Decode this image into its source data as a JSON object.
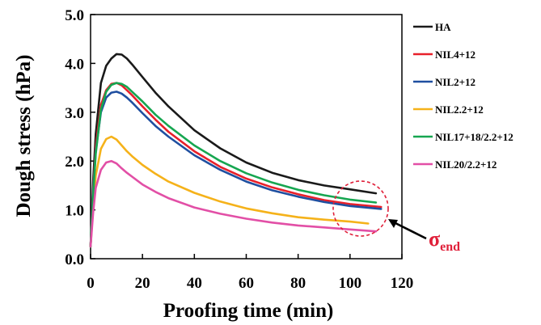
{
  "chart_data": {
    "type": "line",
    "title": "",
    "xlabel": "Proofing time (min)",
    "ylabel": "Dough stress (hPa)",
    "xlim": [
      0,
      120
    ],
    "ylim": [
      0,
      5
    ],
    "xticks": [
      "0",
      "20",
      "40",
      "60",
      "80",
      "100",
      "120"
    ],
    "yticks": [
      "0.0",
      "1.0",
      "2.0",
      "3.0",
      "4.0",
      "5.0"
    ],
    "grid": false,
    "legend_position": "right",
    "series": [
      {
        "name": "HA",
        "color": "#1a1a1a",
        "x": [
          0,
          1,
          2,
          4,
          6,
          8,
          10,
          12,
          14,
          16,
          20,
          25,
          30,
          40,
          50,
          60,
          70,
          80,
          90,
          100,
          110
        ],
        "y": [
          0.25,
          1.6,
          2.55,
          3.6,
          3.95,
          4.1,
          4.19,
          4.18,
          4.1,
          3.98,
          3.72,
          3.4,
          3.12,
          2.63,
          2.26,
          1.97,
          1.76,
          1.61,
          1.5,
          1.42,
          1.34
        ]
      },
      {
        "name": "NIL4+12",
        "color": "#e8202a",
        "x": [
          0,
          1,
          2,
          4,
          6,
          8,
          10,
          12,
          14,
          16,
          20,
          25,
          30,
          40,
          50,
          60,
          70,
          80,
          90,
          100,
          112
        ],
        "y": [
          0.25,
          1.4,
          2.3,
          3.15,
          3.45,
          3.58,
          3.6,
          3.55,
          3.45,
          3.35,
          3.12,
          2.85,
          2.6,
          2.2,
          1.88,
          1.64,
          1.46,
          1.32,
          1.2,
          1.12,
          1.06
        ]
      },
      {
        "name": "NIL2+12",
        "color": "#1f4fa0",
        "x": [
          0,
          1,
          2,
          4,
          6,
          8,
          10,
          12,
          14,
          16,
          20,
          25,
          30,
          40,
          50,
          60,
          70,
          80,
          90,
          100,
          112
        ],
        "y": [
          0.25,
          1.35,
          2.2,
          3.0,
          3.3,
          3.4,
          3.42,
          3.38,
          3.3,
          3.2,
          2.98,
          2.72,
          2.5,
          2.12,
          1.82,
          1.58,
          1.4,
          1.27,
          1.16,
          1.08,
          1.02
        ]
      },
      {
        "name": "NIL2.2+12",
        "color": "#f5b21a",
        "x": [
          0,
          1,
          2,
          4,
          6,
          8,
          10,
          12,
          14,
          16,
          20,
          25,
          30,
          40,
          50,
          60,
          70,
          80,
          90,
          100,
          107
        ],
        "y": [
          0.25,
          1.1,
          1.7,
          2.25,
          2.45,
          2.5,
          2.44,
          2.32,
          2.2,
          2.1,
          1.92,
          1.74,
          1.58,
          1.35,
          1.17,
          1.03,
          0.93,
          0.85,
          0.8,
          0.76,
          0.72
        ]
      },
      {
        "name": "NIL17+18/2.2+12",
        "color": "#16a650",
        "x": [
          0,
          1,
          2,
          4,
          6,
          8,
          10,
          12,
          14,
          16,
          20,
          25,
          30,
          40,
          50,
          60,
          70,
          80,
          90,
          100,
          110
        ],
        "y": [
          0.25,
          1.3,
          2.15,
          3.05,
          3.42,
          3.56,
          3.6,
          3.58,
          3.52,
          3.42,
          3.22,
          2.95,
          2.72,
          2.32,
          2.0,
          1.75,
          1.56,
          1.41,
          1.3,
          1.21,
          1.15
        ]
      },
      {
        "name": "NIL20/2.2+12",
        "color": "#e24fa6",
        "x": [
          0,
          1,
          2,
          4,
          6,
          8,
          10,
          12,
          14,
          16,
          20,
          25,
          30,
          40,
          50,
          60,
          70,
          80,
          90,
          100,
          110
        ],
        "y": [
          0.25,
          0.95,
          1.45,
          1.82,
          1.97,
          2.0,
          1.95,
          1.85,
          1.76,
          1.68,
          1.52,
          1.37,
          1.24,
          1.05,
          0.92,
          0.82,
          0.74,
          0.68,
          0.64,
          0.6,
          0.56
        ]
      }
    ],
    "annotation": {
      "symbol": "σ",
      "subscript": "end",
      "color": "#e0203a"
    }
  }
}
